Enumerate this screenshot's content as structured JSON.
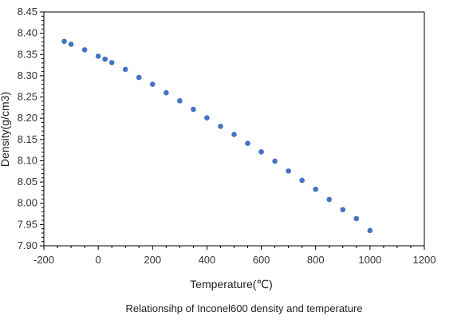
{
  "caption": "Relationsihp of Inconel600 density and temperature",
  "chart_data": {
    "type": "scatter",
    "title": "",
    "xlabel": "Temperature(℃)",
    "ylabel": "Density(g/cm3)",
    "xlim": [
      -200,
      1200
    ],
    "ylim": [
      7.9,
      8.45
    ],
    "x_ticks": [
      "-200",
      "0",
      "200",
      "400",
      "600",
      "800",
      "1000",
      "1200"
    ],
    "y_ticks": [
      "7.90",
      "7.95",
      "8.00",
      "8.05",
      "8.10",
      "8.15",
      "8.20",
      "8.25",
      "8.30",
      "8.35",
      "8.40",
      "8.45"
    ],
    "grid": false,
    "legend": "none",
    "marker_color": "#4472c4",
    "series": [
      {
        "x": [
          -125,
          -100,
          -50,
          0,
          25,
          50,
          100,
          150,
          200,
          250,
          300,
          350,
          400,
          450,
          500,
          550,
          600,
          650,
          700,
          750,
          800,
          850,
          900,
          950,
          1000
        ],
        "y": [
          8.381,
          8.374,
          8.361,
          8.346,
          8.339,
          8.331,
          8.315,
          8.296,
          8.28,
          8.26,
          8.241,
          8.221,
          8.201,
          8.181,
          8.162,
          8.141,
          8.121,
          8.099,
          8.076,
          8.054,
          8.033,
          8.009,
          7.985,
          7.964,
          7.936
        ]
      }
    ]
  }
}
